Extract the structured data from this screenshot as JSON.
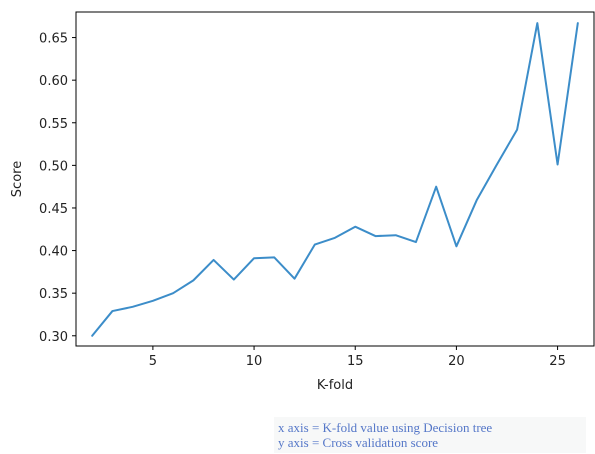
{
  "chart_data": {
    "type": "line",
    "title": "",
    "xlabel": "K-fold",
    "ylabel": "Score",
    "xlim": [
      1.2,
      26.8
    ],
    "ylim": [
      0.288,
      0.68
    ],
    "x_ticks": [
      5,
      10,
      15,
      20,
      25
    ],
    "x_tick_labels": [
      "5",
      "10",
      "15",
      "20",
      "25"
    ],
    "y_ticks": [
      0.3,
      0.35,
      0.4,
      0.45,
      0.5,
      0.55,
      0.6,
      0.65
    ],
    "y_tick_labels": [
      "0.30",
      "0.35",
      "0.40",
      "0.45",
      "0.50",
      "0.55",
      "0.60",
      "0.65"
    ],
    "grid": false,
    "color": "#3c8dc9",
    "series": [
      {
        "x": [
          2,
          3,
          4,
          5,
          6,
          7,
          8,
          9,
          10,
          11,
          12,
          13,
          14,
          15,
          16,
          17,
          18,
          19,
          20,
          21,
          22,
          23,
          24,
          25,
          26
        ],
        "y": [
          0.3,
          0.329,
          0.334,
          0.341,
          0.35,
          0.365,
          0.389,
          0.366,
          0.391,
          0.392,
          0.367,
          0.407,
          0.415,
          0.428,
          0.417,
          0.418,
          0.41,
          0.475,
          0.405,
          0.459,
          0.501,
          0.542,
          0.667,
          0.501,
          0.667
        ]
      }
    ]
  },
  "caption": {
    "line1": "x axis = K-fold value using Decision tree",
    "line2": "y axis = Cross validation score"
  }
}
